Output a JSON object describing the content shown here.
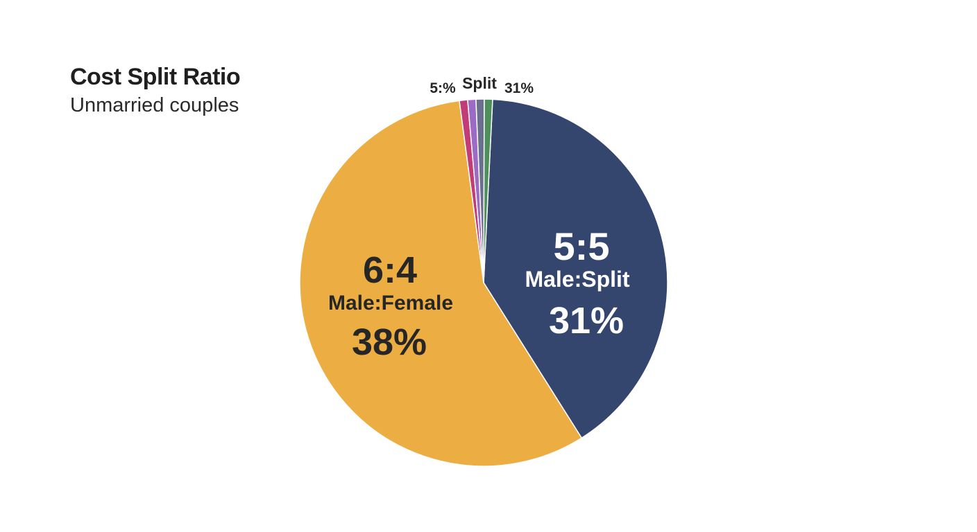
{
  "chart_data": {
    "type": "pie",
    "title": "Cost Split Ratio",
    "subtitle": "Unmarried couples",
    "slices": [
      {
        "ratio": "5:5",
        "category": "Male:Split",
        "percent_label": "31%",
        "value": 31,
        "color": "#34466e",
        "text_color": "#ffffff"
      },
      {
        "ratio": "6:4",
        "category": "Male:Female",
        "percent_label": "38%",
        "value": 38,
        "color": "#ecae43",
        "text_color": "#262626"
      },
      {
        "color": "#c23d78",
        "value": 0.4
      },
      {
        "color": "#9c6bc6",
        "value": 0.4
      },
      {
        "color": "#6a6f8e",
        "value": 0.4
      },
      {
        "color": "#4e8f5c",
        "value": 0.4
      }
    ],
    "top_labels": [
      "5:%",
      "Split",
      "31%"
    ]
  }
}
